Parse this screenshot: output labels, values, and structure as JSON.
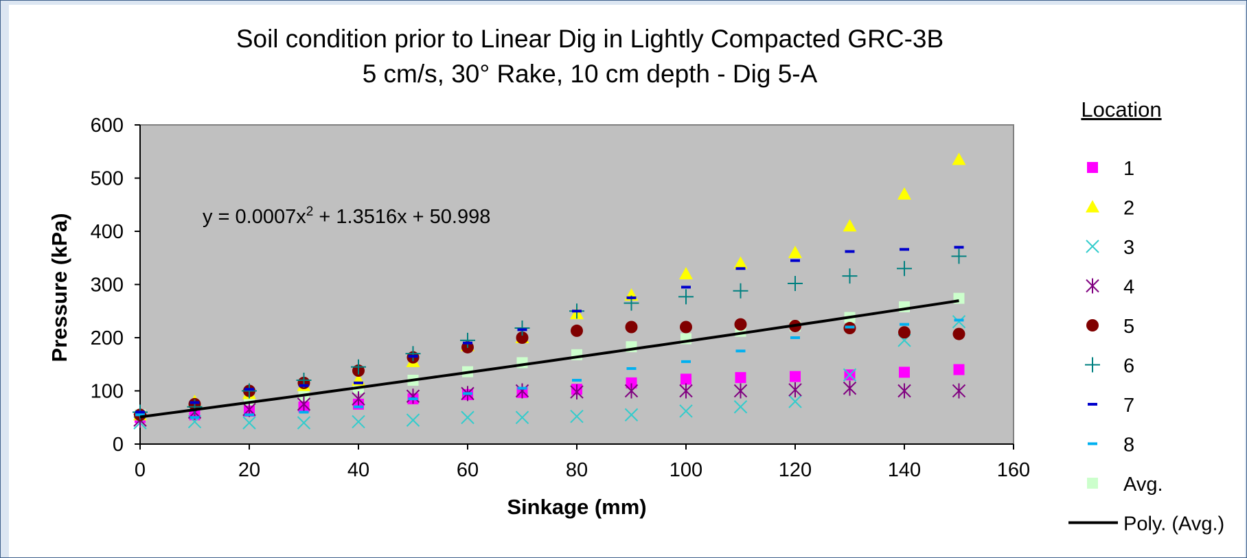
{
  "chart_data": {
    "type": "scatter",
    "title": "Soil condition prior to Linear Dig in Lightly Compacted GRC-3B",
    "subtitle": "5 cm/s, 30° Rake, 10 cm depth - Dig 5-A",
    "xlabel": "Sinkage (mm)",
    "ylabel": "Pressure (kPa)",
    "xlim": [
      0,
      160
    ],
    "ylim": [
      0,
      600
    ],
    "xticks": [
      0,
      20,
      40,
      60,
      80,
      100,
      120,
      140,
      160
    ],
    "yticks": [
      0,
      100,
      200,
      300,
      400,
      500,
      600
    ],
    "plot_background": "#c0c0c0",
    "grid": false,
    "legend_title": "Location",
    "legend_position": "right",
    "equation": {
      "prefix": "y = 0.0007x",
      "exp": "2",
      "suffix": " + 1.3516x + 50.998",
      "coefficients": [
        0.0007,
        1.3516,
        50.998
      ]
    },
    "x": [
      0,
      10,
      20,
      30,
      40,
      50,
      60,
      70,
      80,
      90,
      100,
      110,
      120,
      130,
      140,
      150
    ],
    "series": [
      {
        "name": "1",
        "marker": "square",
        "color": "#ff00ff",
        "values": [
          50,
          55,
          62,
          70,
          75,
          85,
          93,
          97,
          103,
          115,
          122,
          125,
          127,
          130,
          135,
          140
        ]
      },
      {
        "name": "2",
        "marker": "triangle",
        "color": "#ffff00",
        "values": [
          55,
          80,
          95,
          110,
          120,
          155,
          185,
          200,
          245,
          280,
          320,
          340,
          360,
          410,
          470,
          535
        ]
      },
      {
        "name": "3",
        "marker": "x",
        "color": "#33cccc",
        "values": [
          40,
          42,
          40,
          40,
          42,
          45,
          50,
          50,
          52,
          55,
          62,
          70,
          80,
          130,
          195,
          230
        ]
      },
      {
        "name": "4",
        "marker": "asterisk",
        "color": "#800080",
        "values": [
          45,
          60,
          65,
          75,
          85,
          90,
          95,
          100,
          98,
          100,
          100,
          100,
          102,
          105,
          100,
          100
        ]
      },
      {
        "name": "5",
        "marker": "circle",
        "color": "#800000",
        "values": [
          55,
          75,
          100,
          115,
          138,
          163,
          182,
          200,
          213,
          220,
          220,
          225,
          222,
          218,
          210,
          207
        ]
      },
      {
        "name": "6",
        "marker": "plus",
        "color": "#008080",
        "values": [
          60,
          70,
          100,
          120,
          145,
          170,
          195,
          218,
          250,
          265,
          277,
          288,
          302,
          316,
          330,
          353
        ]
      },
      {
        "name": "7",
        "marker": "dash",
        "color": "#0000cc",
        "values": [
          60,
          78,
          103,
          110,
          115,
          165,
          190,
          215,
          250,
          275,
          295,
          330,
          345,
          362,
          366,
          370
        ]
      },
      {
        "name": "8",
        "marker": "dash",
        "color": "#00b0f0",
        "values": [
          55,
          50,
          55,
          60,
          70,
          85,
          95,
          105,
          120,
          142,
          155,
          175,
          200,
          220,
          225,
          233
        ]
      },
      {
        "name": "Avg.",
        "marker": "square",
        "color": "#ccffcc",
        "values": [
          55,
          65,
          80,
          90,
          105,
          120,
          136,
          153,
          168,
          183,
          198,
          212,
          222,
          238,
          258,
          274
        ]
      }
    ],
    "trendline": {
      "name": "Poly. (Avg.)",
      "type": "polynomial",
      "order": 2,
      "color": "#000000"
    }
  }
}
